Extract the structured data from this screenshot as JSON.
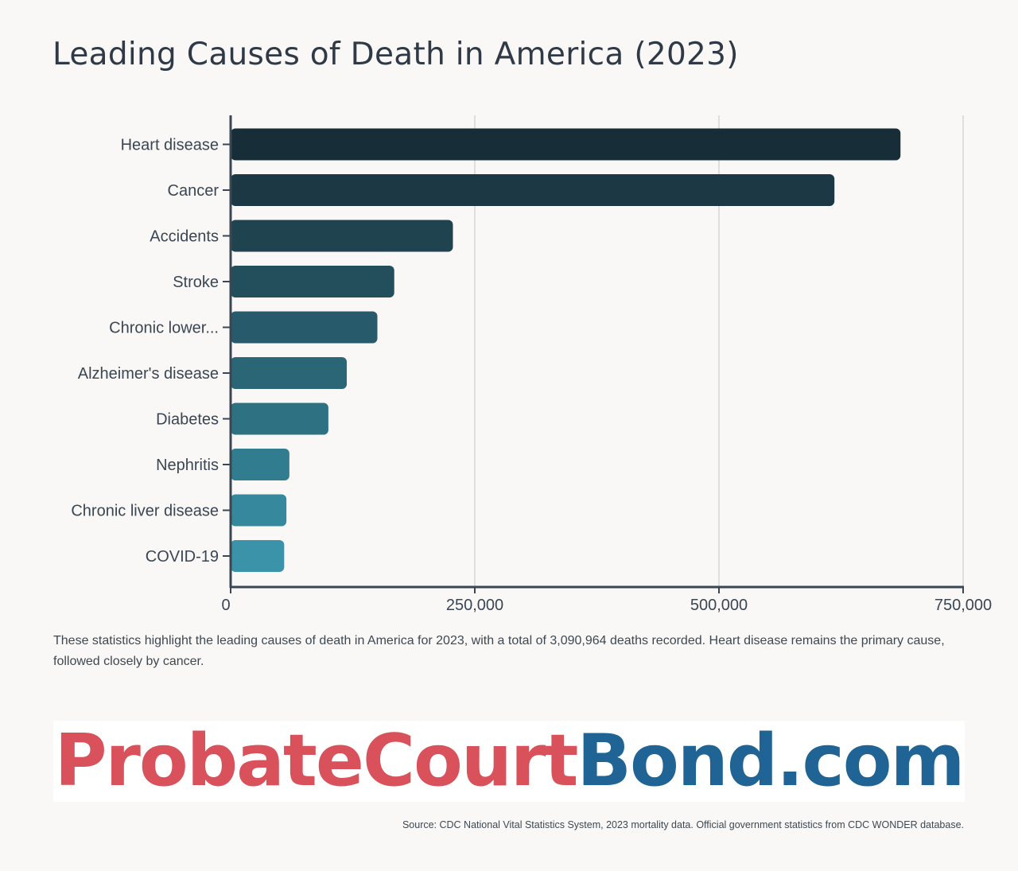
{
  "title": "Leading Causes of Death in America (2023)",
  "description": "These statistics highlight the leading causes of death in America for 2023, with a total of 3,090,964 deaths recorded. Heart disease remains the primary cause, followed closely by cancer.",
  "logo": {
    "part1": "ProbateCourt",
    "part2": "Bond.com"
  },
  "source": "Source: CDC National Vital Statistics System, 2023 mortality data. Official government statistics from CDC WONDER database.",
  "colors": {
    "bar_dark": "#172d37",
    "bar_light": "#3a93a9",
    "grid": "#d6d6d4",
    "axis": "#3a4653",
    "logo_red": "#d9515a",
    "logo_blue": "#1f6494"
  },
  "chart_data": {
    "type": "bar",
    "orientation": "horizontal",
    "title": "Leading Causes of Death in America (2023)",
    "xlabel": "",
    "ylabel": "",
    "categories": [
      "Heart disease",
      "Cancer",
      "Accidents",
      "Stroke",
      "Chronic lower...",
      "Alzheimer's disease",
      "Diabetes",
      "Nephritis",
      "Chronic liver disease",
      "COVID-19"
    ],
    "values": [
      680981,
      613352,
      222698,
      162639,
      145357,
      114034,
      95190,
      55253,
      52222,
      49932
    ],
    "xlim": [
      0,
      750000
    ],
    "x_ticks": [
      0,
      250000,
      500000,
      750000
    ],
    "x_tick_labels": [
      "0",
      "250,000",
      "500,000",
      "750,000"
    ],
    "grid": true
  }
}
